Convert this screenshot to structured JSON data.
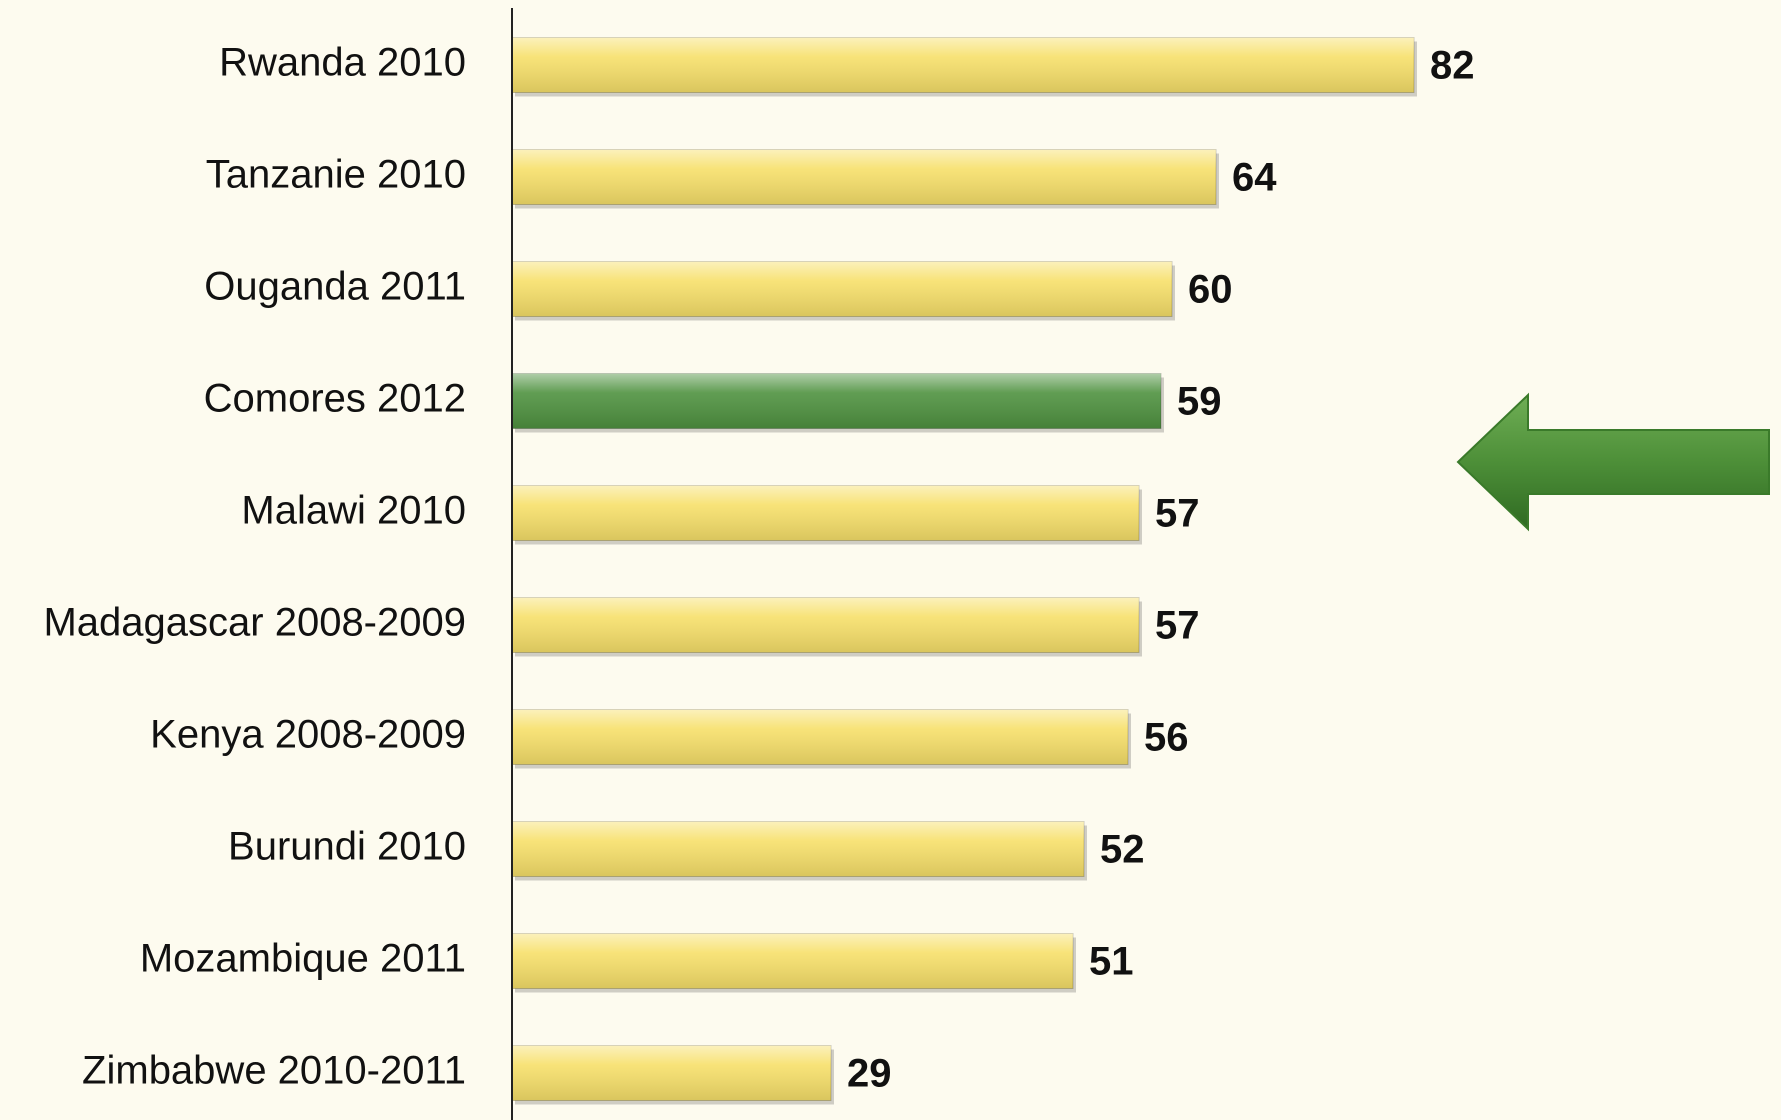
{
  "chart_data": {
    "type": "hbar",
    "categories": [
      "Rwanda 2010",
      "Tanzanie 2010",
      "Ouganda 2011",
      "Comores 2012",
      "Malawi 2010",
      "Madagascar 2008-2009",
      "Kenya 2008-2009",
      "Burundi 2010",
      "Mozambique 2011",
      "Zimbabwe 2010-2011"
    ],
    "values": [
      82,
      64,
      60,
      59,
      57,
      57,
      56,
      52,
      51,
      29
    ],
    "colors": [
      "#f7e06a",
      "#f7e06a",
      "#f7e06a",
      "#4f9240",
      "#f7e06a",
      "#f7e06a",
      "#f7e06a",
      "#f7e06a",
      "#f7e06a",
      "#f7e06a"
    ],
    "xlim": [
      0,
      100
    ]
  }
}
